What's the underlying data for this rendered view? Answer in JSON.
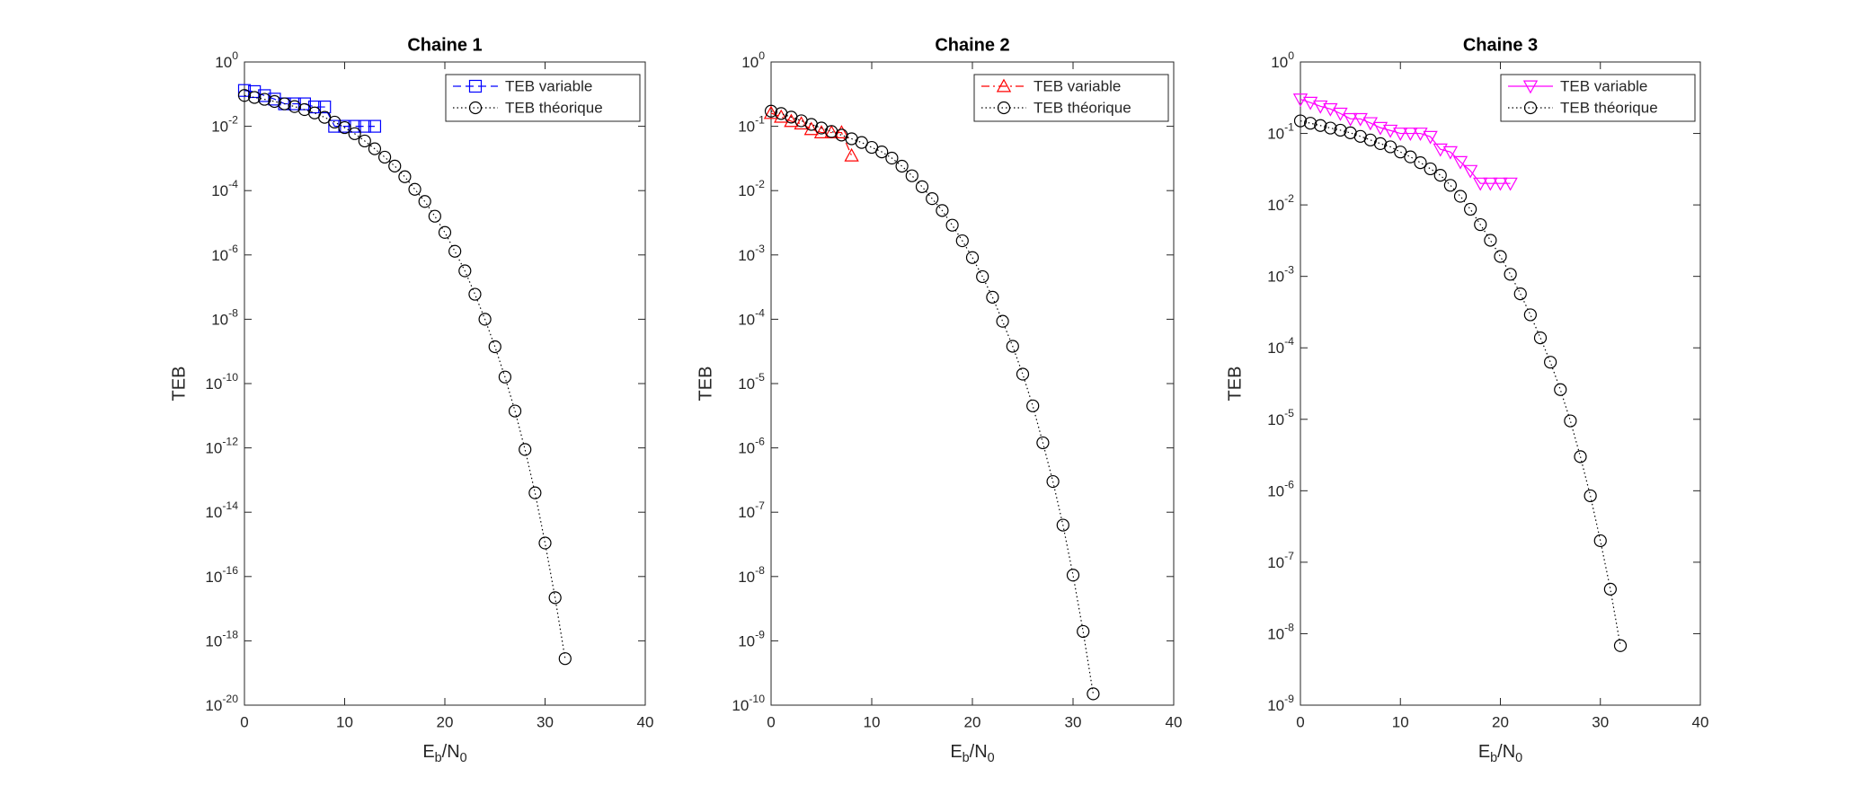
{
  "chart_data": [
    {
      "type": "line",
      "title": "Chaine 1",
      "xlabel": "E_b/N_0",
      "ylabel": "TEB",
      "yscale": "log",
      "legend": "upper right",
      "grid": false,
      "xlim": [
        0,
        40
      ],
      "xticks": [
        0,
        10,
        20,
        30,
        40
      ],
      "ylim": [
        1e-20,
        1
      ],
      "yticks": [
        {
          "value": 1e-20,
          "label": "10^-20"
        },
        {
          "value": 1e-18,
          "label": "10^-18"
        },
        {
          "value": 1e-16,
          "label": "10^-16"
        },
        {
          "value": 1e-14,
          "label": "10^-14"
        },
        {
          "value": 1e-12,
          "label": "10^-12"
        },
        {
          "value": 1e-10,
          "label": "10^-10"
        },
        {
          "value": 1e-08,
          "label": "10^-8"
        },
        {
          "value": 1e-06,
          "label": "10^-6"
        },
        {
          "value": 0.0001,
          "label": "10^-4"
        },
        {
          "value": 0.01,
          "label": "10^-2"
        },
        {
          "value": 1,
          "label": "10^0"
        }
      ],
      "series": [
        {
          "name": "TEB variable",
          "color": "#0000ff",
          "linestyle": "--",
          "marker": "s",
          "x": [
            0,
            1,
            2,
            3,
            4,
            5,
            6,
            7,
            8,
            9,
            10,
            11,
            12,
            13
          ],
          "values": [
            0.13,
            0.12,
            0.09,
            0.07,
            0.05,
            0.05,
            0.05,
            0.04,
            0.04,
            0.01,
            0.01,
            0.01,
            0.01,
            0.01
          ]
        },
        {
          "name": "TEB théorique",
          "color": "#000000",
          "linestyle": ":",
          "marker": "o",
          "x": [
            0,
            1,
            2,
            3,
            4,
            5,
            6,
            7,
            8,
            9,
            10,
            11,
            12,
            13,
            14,
            15,
            16,
            17,
            18,
            19,
            20,
            21,
            22,
            23,
            24,
            25,
            26,
            27,
            28,
            29,
            30,
            31,
            32
          ],
          "values": [
            0.091,
            0.079,
            0.069,
            0.059,
            0.05,
            0.041,
            0.033,
            0.026,
            0.019,
            0.0135,
            0.0091,
            0.0059,
            0.0035,
            0.002,
            0.0011,
            0.00058,
            0.00027,
            0.00011,
            4.6e-05,
            1.6e-05,
            5e-06,
            1.3e-06,
            3.2e-07,
            6e-08,
            1e-08,
            1.4e-09,
            1.6e-10,
            1.4e-11,
            8.9e-13,
            4e-14,
            1.1e-15,
            2.2e-17,
            2.8e-19
          ]
        }
      ]
    },
    {
      "type": "line",
      "title": "Chaine 2",
      "xlabel": "E_b/N_0",
      "ylabel": "TEB",
      "yscale": "log",
      "legend": "upper right",
      "grid": false,
      "xlim": [
        0,
        40
      ],
      "xticks": [
        0,
        10,
        20,
        30,
        40
      ],
      "ylim": [
        1e-10,
        1
      ],
      "yticks": [
        {
          "value": 1e-10,
          "label": "10^-10"
        },
        {
          "value": 1e-09,
          "label": "10^-9"
        },
        {
          "value": 1e-08,
          "label": "10^-8"
        },
        {
          "value": 1e-07,
          "label": "10^-7"
        },
        {
          "value": 1e-06,
          "label": "10^-6"
        },
        {
          "value": 1e-05,
          "label": "10^-5"
        },
        {
          "value": 0.0001,
          "label": "10^-4"
        },
        {
          "value": 0.001,
          "label": "10^-3"
        },
        {
          "value": 0.01,
          "label": "10^-2"
        },
        {
          "value": 0.1,
          "label": "10^-1"
        },
        {
          "value": 1,
          "label": "10^0"
        }
      ],
      "series": [
        {
          "name": "TEB variable",
          "color": "#ff0000",
          "linestyle": "-.",
          "marker": "^",
          "x": [
            0,
            1,
            2,
            3,
            4,
            5,
            6,
            7,
            8
          ],
          "values": [
            0.16,
            0.14,
            0.12,
            0.11,
            0.09,
            0.08,
            0.08,
            0.08,
            0.035
          ]
        },
        {
          "name": "TEB théorique",
          "color": "#000000",
          "linestyle": ":",
          "marker": "o",
          "x": [
            0,
            1,
            2,
            3,
            4,
            5,
            6,
            7,
            8,
            9,
            10,
            11,
            12,
            13,
            14,
            15,
            16,
            17,
            18,
            19,
            20,
            21,
            22,
            23,
            24,
            25,
            26,
            27,
            28,
            29,
            30,
            31,
            32
          ],
          "values": [
            0.172,
            0.158,
            0.139,
            0.122,
            0.107,
            0.094,
            0.083,
            0.073,
            0.064,
            0.056,
            0.047,
            0.04,
            0.032,
            0.024,
            0.017,
            0.0115,
            0.0075,
            0.0049,
            0.0029,
            0.00166,
            0.00091,
            0.00046,
            0.00022,
            9.3e-05,
            3.8e-05,
            1.4e-05,
            4.5e-06,
            1.2e-06,
            3e-07,
            6.3e-08,
            1.05e-08,
            1.4e-09,
            1.5e-10
          ]
        }
      ]
    },
    {
      "type": "line",
      "title": "Chaine 3",
      "xlabel": "E_b/N_0",
      "ylabel": "TEB",
      "yscale": "log",
      "legend": "upper right",
      "grid": false,
      "xlim": [
        0,
        40
      ],
      "xticks": [
        0,
        10,
        20,
        30,
        40
      ],
      "ylim": [
        1e-09,
        1
      ],
      "yticks": [
        {
          "value": 1e-09,
          "label": "10^-9"
        },
        {
          "value": 1e-08,
          "label": "10^-8"
        },
        {
          "value": 1e-07,
          "label": "10^-7"
        },
        {
          "value": 1e-06,
          "label": "10^-6"
        },
        {
          "value": 1e-05,
          "label": "10^-5"
        },
        {
          "value": 0.0001,
          "label": "10^-4"
        },
        {
          "value": 0.001,
          "label": "10^-3"
        },
        {
          "value": 0.01,
          "label": "10^-2"
        },
        {
          "value": 0.1,
          "label": "10^-1"
        },
        {
          "value": 1,
          "label": "10^0"
        }
      ],
      "series": [
        {
          "name": "TEB variable",
          "color": "#ff00ff",
          "linestyle": "-",
          "marker": "v",
          "x": [
            0,
            1,
            2,
            3,
            4,
            5,
            6,
            7,
            8,
            9,
            10,
            11,
            12,
            13,
            14,
            15,
            16,
            17,
            18,
            19,
            20,
            21
          ],
          "values": [
            0.3,
            0.27,
            0.24,
            0.22,
            0.19,
            0.16,
            0.16,
            0.14,
            0.12,
            0.11,
            0.1,
            0.1,
            0.1,
            0.09,
            0.06,
            0.055,
            0.04,
            0.03,
            0.02,
            0.02,
            0.02,
            0.02
          ]
        },
        {
          "name": "TEB théorique",
          "color": "#000000",
          "linestyle": ":",
          "marker": "o",
          "x": [
            0,
            1,
            2,
            3,
            4,
            5,
            6,
            7,
            8,
            9,
            10,
            11,
            12,
            13,
            14,
            15,
            16,
            17,
            18,
            19,
            20,
            21,
            22,
            23,
            24,
            25,
            26,
            27,
            28,
            29,
            30,
            31,
            32
          ],
          "values": [
            0.15,
            0.139,
            0.129,
            0.119,
            0.111,
            0.102,
            0.091,
            0.081,
            0.072,
            0.065,
            0.055,
            0.047,
            0.039,
            0.032,
            0.026,
            0.0188,
            0.0132,
            0.0087,
            0.0053,
            0.0032,
            0.0019,
            0.00107,
            0.00057,
            0.00029,
            0.000138,
            6.3e-05,
            2.6e-05,
            9.5e-06,
            3e-06,
            8.5e-07,
            2e-07,
            4.2e-08,
            6.8e-09
          ]
        }
      ]
    }
  ]
}
